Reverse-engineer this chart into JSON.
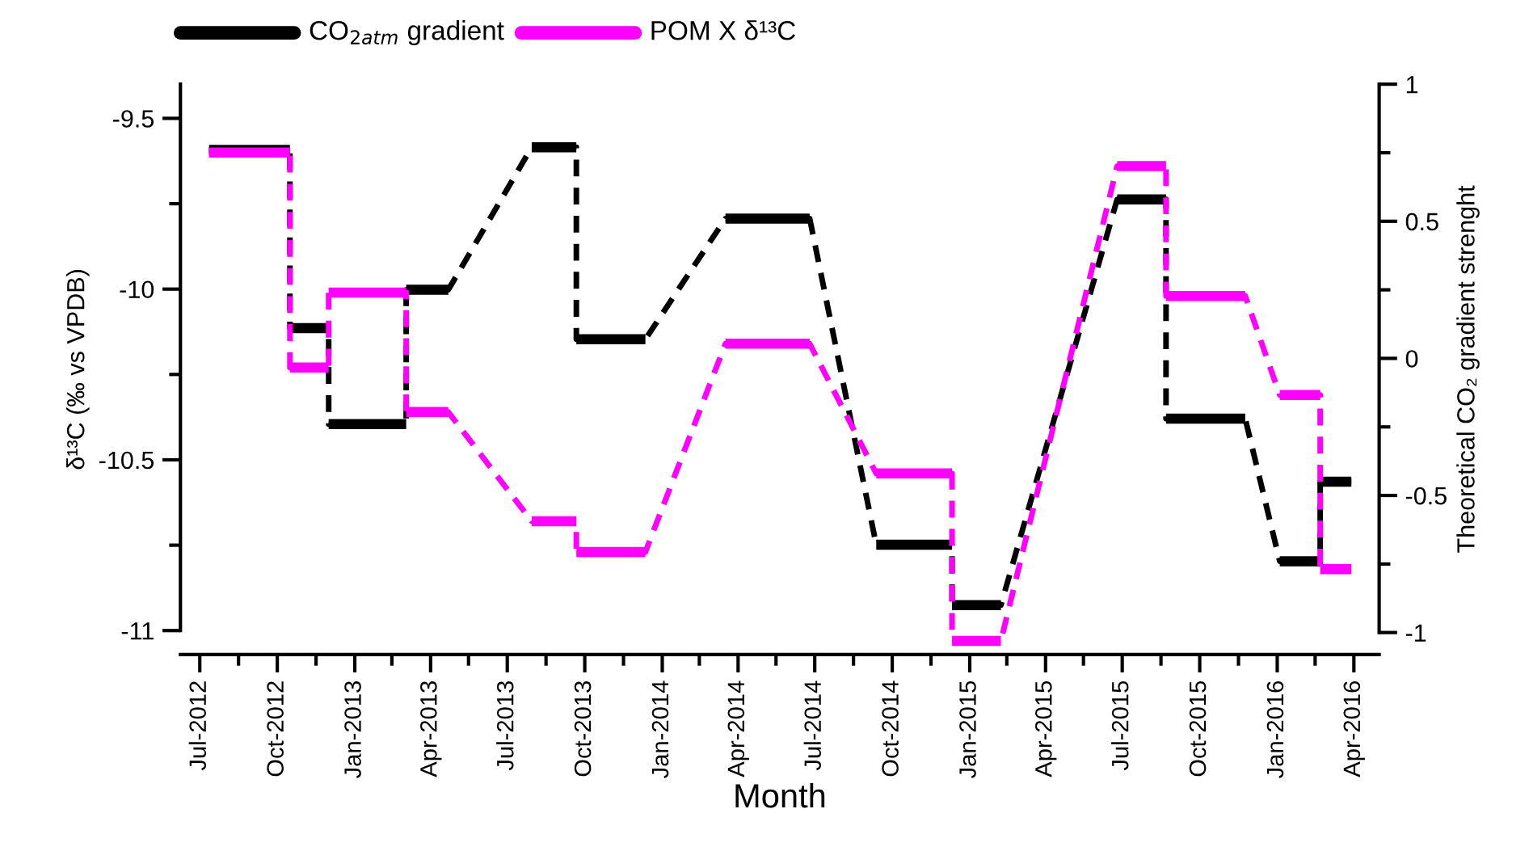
{
  "chart_data": {
    "type": "line",
    "xlabel": "Month",
    "ylabel": "δ¹³C (‰ vs VPDB)",
    "y2label": "Theoretical CO₂ gradient strenght",
    "legend": "top",
    "grid": false,
    "marker": "none",
    "line_style": "dashed",
    "xlim": [
      "2012-06-08",
      "2016-05-01"
    ],
    "xticks": [
      {
        "value": "2012-07-01",
        "label": "Jul-2012"
      },
      {
        "value": "2012-08-16",
        "label": null
      },
      {
        "value": "2012-10-01",
        "label": "Oct-2012"
      },
      {
        "value": "2012-11-16",
        "label": null
      },
      {
        "value": "2013-01-01",
        "label": "Jan-2013"
      },
      {
        "value": "2013-02-14",
        "label": null
      },
      {
        "value": "2013-04-01",
        "label": "Apr-2013"
      },
      {
        "value": "2013-05-16",
        "label": null
      },
      {
        "value": "2013-07-01",
        "label": "Jul-2013"
      },
      {
        "value": "2013-08-16",
        "label": null
      },
      {
        "value": "2013-10-01",
        "label": "Oct-2013"
      },
      {
        "value": "2013-11-16",
        "label": null
      },
      {
        "value": "2014-01-01",
        "label": "Jan-2014"
      },
      {
        "value": "2014-02-14",
        "label": null
      },
      {
        "value": "2014-04-01",
        "label": "Apr-2014"
      },
      {
        "value": "2014-05-16",
        "label": null
      },
      {
        "value": "2014-07-01",
        "label": "Jul-2014"
      },
      {
        "value": "2014-08-16",
        "label": null
      },
      {
        "value": "2014-10-01",
        "label": "Oct-2014"
      },
      {
        "value": "2014-11-16",
        "label": null
      },
      {
        "value": "2015-01-01",
        "label": "Jan-2015"
      },
      {
        "value": "2015-02-14",
        "label": null
      },
      {
        "value": "2015-04-01",
        "label": "Apr-2015"
      },
      {
        "value": "2015-05-16",
        "label": null
      },
      {
        "value": "2015-07-01",
        "label": "Jul-2015"
      },
      {
        "value": "2015-08-16",
        "label": null
      },
      {
        "value": "2015-10-01",
        "label": "Oct-2015"
      },
      {
        "value": "2015-11-16",
        "label": null
      },
      {
        "value": "2016-01-01",
        "label": "Jan-2016"
      },
      {
        "value": "2016-02-15",
        "label": null
      },
      {
        "value": "2016-04-01",
        "label": "Apr-2016"
      }
    ],
    "ylim": [
      -11.07,
      -9.4
    ],
    "yticks": [
      -11,
      {
        "value": -10.75,
        "label": null
      },
      -10.5,
      {
        "value": -10.25,
        "label": null
      },
      -10,
      {
        "value": -9.75,
        "label": null
      },
      -9.5
    ],
    "y2lim": [
      -1.08,
      1.0
    ],
    "y2ticks": [
      -1,
      {
        "value": -0.75,
        "label": null
      },
      -0.5,
      {
        "value": -0.25,
        "label": null
      },
      0,
      {
        "value": 0.25,
        "label": null
      },
      0.5,
      {
        "value": 0.75,
        "label": null
      },
      1
    ],
    "series": [
      {
        "name": "CO$_{2atm}$ gradient",
        "color": "#000000",
        "axis": "y2",
        "x": [
          "2012-07-12",
          "2012-10-16",
          "2012-10-16",
          "2012-12-01",
          "2012-12-01",
          "2013-03-03",
          "2013-03-03",
          "2013-04-22",
          "2013-07-30",
          "2013-09-21",
          "2013-09-21",
          "2013-12-12",
          "2014-03-17",
          "2014-06-25",
          "2014-09-12",
          "2014-12-11",
          "2014-12-11",
          "2015-02-07",
          "2015-06-25",
          "2015-08-22",
          "2015-08-22",
          "2015-11-24",
          "2016-01-04",
          "2016-02-21",
          "2016-02-21",
          "2016-03-29"
        ],
        "values": [
          0.76,
          0.76,
          0.11,
          0.11,
          -0.24,
          -0.24,
          0.25,
          0.25,
          0.77,
          0.77,
          0.07,
          0.07,
          0.51,
          0.51,
          -0.68,
          -0.68,
          -0.9,
          -0.9,
          0.58,
          0.58,
          -0.22,
          -0.22,
          -0.74,
          -0.74,
          -0.45,
          -0.45
        ]
      },
      {
        "name": "POM X δ¹³C",
        "color": "#ff00ff",
        "x": [
          "2012-07-12",
          "2012-10-16",
          "2012-10-16",
          "2012-12-01",
          "2012-12-01",
          "2013-03-03",
          "2013-03-03",
          "2013-04-22",
          "2013-07-30",
          "2013-09-21",
          "2013-09-21",
          "2013-12-12",
          "2014-03-17",
          "2014-06-25",
          "2014-09-12",
          "2014-12-11",
          "2014-12-11",
          "2015-02-07",
          "2015-06-25",
          "2015-08-22",
          "2015-08-22",
          "2015-11-24",
          "2016-01-04",
          "2016-02-21",
          "2016-02-21",
          "2016-03-29"
        ],
        "values": [
          -9.6,
          -9.6,
          -10.23,
          -10.23,
          -10.01,
          -10.01,
          -10.36,
          -10.36,
          -10.68,
          -10.68,
          -10.77,
          -10.77,
          -10.16,
          -10.16,
          -10.54,
          -10.54,
          -11.03,
          -11.03,
          -9.64,
          -9.64,
          -10.02,
          -10.02,
          -10.31,
          -10.31,
          -10.82,
          -10.82
        ]
      }
    ]
  }
}
